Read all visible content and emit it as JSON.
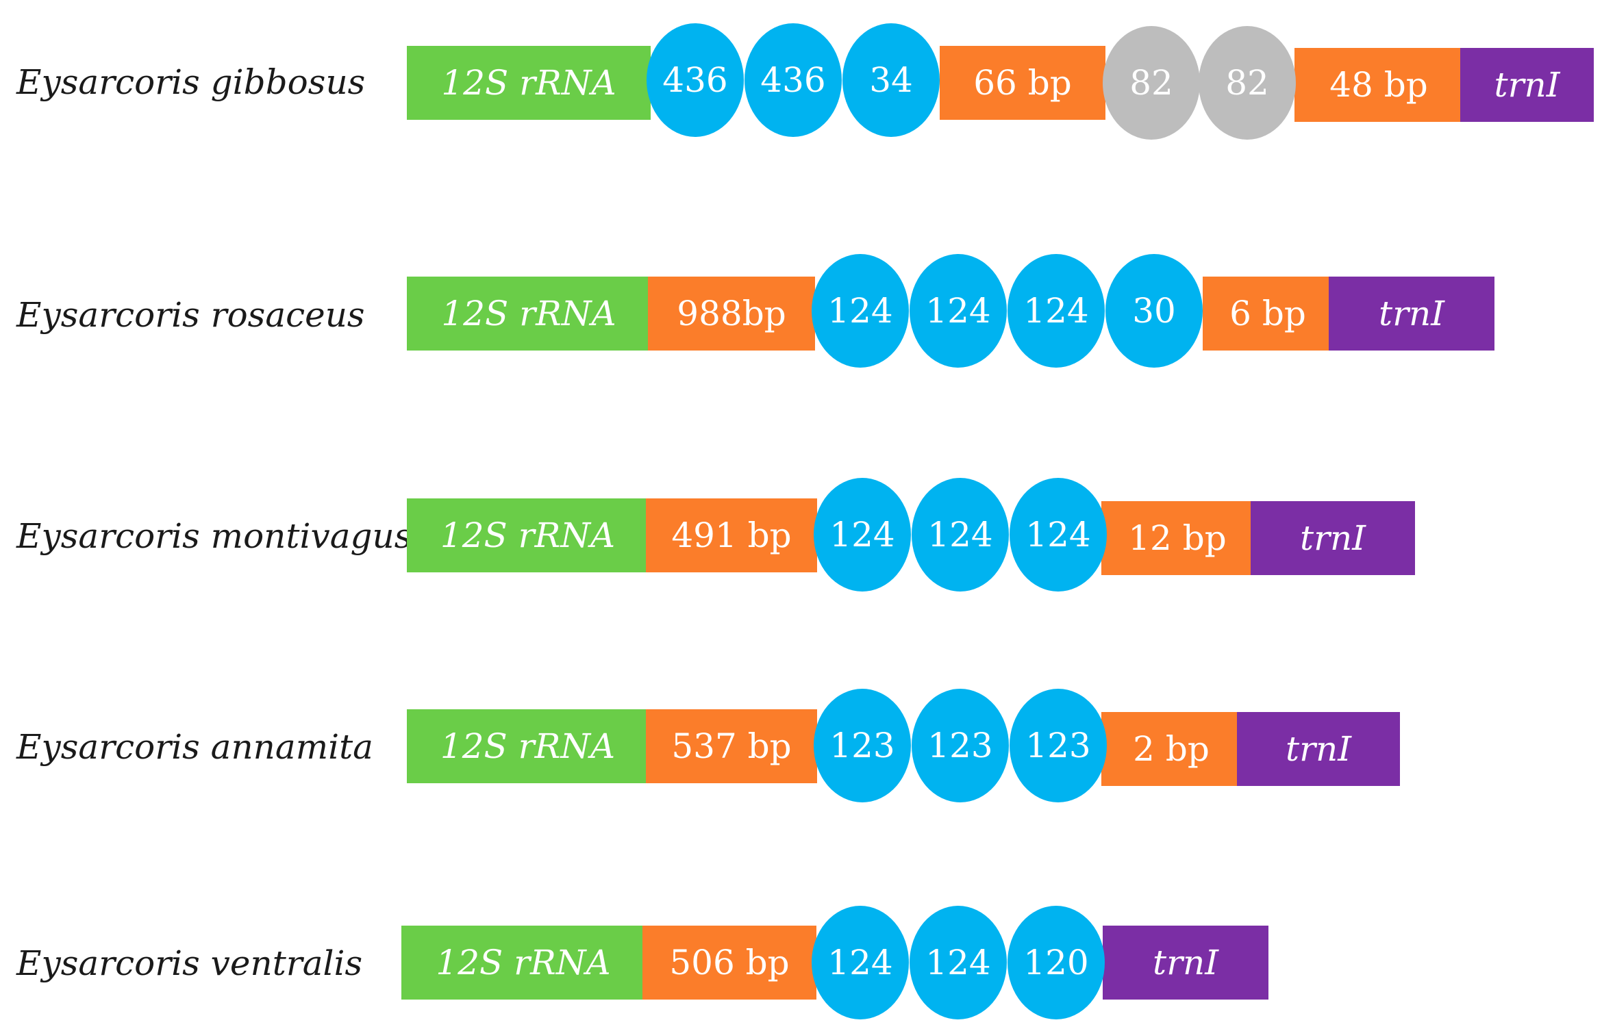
{
  "colors": {
    "rrna": "#6acd48",
    "spacer": "#fb7d2a",
    "repeat": "#00b3f0",
    "repeat_alt": "#bdbdbd",
    "trna": "#7b2ea5"
  },
  "rows": [
    {
      "species": "Eysarcoris gibbosus",
      "segments": [
        {
          "kind": "rrna",
          "label": "12S rRNA"
        },
        {
          "kind": "repeat",
          "label": "436"
        },
        {
          "kind": "repeat",
          "label": "436"
        },
        {
          "kind": "repeat",
          "label": "34"
        },
        {
          "kind": "spacer",
          "label": "66 bp"
        },
        {
          "kind": "repeat_alt",
          "label": "82"
        },
        {
          "kind": "repeat_alt",
          "label": "82"
        },
        {
          "kind": "spacer",
          "label": "48 bp"
        },
        {
          "kind": "trna",
          "label": "trnI"
        }
      ]
    },
    {
      "species": "Eysarcoris rosaceus",
      "segments": [
        {
          "kind": "rrna",
          "label": "12S rRNA"
        },
        {
          "kind": "spacer",
          "label": "988bp"
        },
        {
          "kind": "repeat",
          "label": "124"
        },
        {
          "kind": "repeat",
          "label": "124"
        },
        {
          "kind": "repeat",
          "label": "124"
        },
        {
          "kind": "repeat",
          "label": "30"
        },
        {
          "kind": "spacer",
          "label": "6 bp"
        },
        {
          "kind": "trna",
          "label": "trnI"
        }
      ]
    },
    {
      "species": "Eysarcoris montivagus",
      "segments": [
        {
          "kind": "rrna",
          "label": "12S rRNA"
        },
        {
          "kind": "spacer",
          "label": "491 bp"
        },
        {
          "kind": "repeat",
          "label": "124"
        },
        {
          "kind": "repeat",
          "label": "124"
        },
        {
          "kind": "repeat",
          "label": "124"
        },
        {
          "kind": "spacer",
          "label": "12 bp"
        },
        {
          "kind": "trna",
          "label": "trnI"
        }
      ]
    },
    {
      "species": "Eysarcoris annamita",
      "segments": [
        {
          "kind": "rrna",
          "label": "12S rRNA"
        },
        {
          "kind": "spacer",
          "label": "537 bp"
        },
        {
          "kind": "repeat",
          "label": "123"
        },
        {
          "kind": "repeat",
          "label": "123"
        },
        {
          "kind": "repeat",
          "label": "123"
        },
        {
          "kind": "spacer",
          "label": "2 bp"
        },
        {
          "kind": "trna",
          "label": "trnI"
        }
      ]
    },
    {
      "species": "Eysarcoris ventralis",
      "segments": [
        {
          "kind": "rrna",
          "label": "12S rRNA"
        },
        {
          "kind": "spacer",
          "label": "506 bp"
        },
        {
          "kind": "repeat",
          "label": "124"
        },
        {
          "kind": "repeat",
          "label": "124"
        },
        {
          "kind": "repeat",
          "label": "120"
        },
        {
          "kind": "trna",
          "label": "trnI"
        }
      ]
    }
  ]
}
